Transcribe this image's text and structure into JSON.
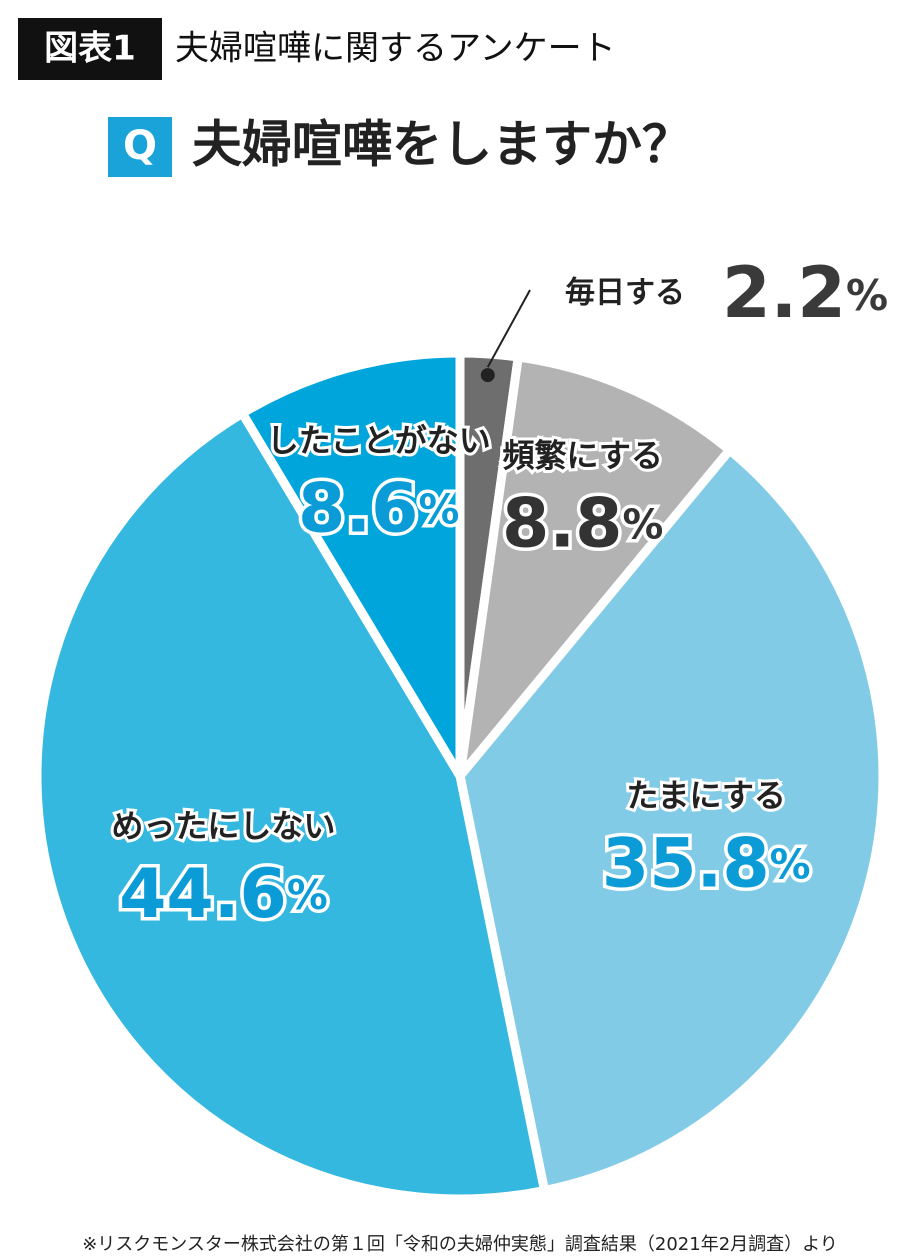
{
  "header": {
    "badge": "図表1",
    "title": "夫婦喧嘩に関するアンケート"
  },
  "question": {
    "badge": "Q",
    "text": "夫婦喧嘩をしますか？"
  },
  "chart_data": {
    "type": "pie",
    "categories": [
      "毎日する",
      "頻繁にする",
      "たまにする",
      "めったにしない",
      "したことがない"
    ],
    "values": [
      2.2,
      8.8,
      35.8,
      44.6,
      8.6
    ],
    "value_labels": [
      "2.2%",
      "8.8%",
      "35.8%",
      "44.6%",
      "8.6%"
    ],
    "colors": [
      "#6e6e6e",
      "#b3b3b3",
      "#82cbe6",
      "#35b8e0",
      "#00a5db"
    ]
  },
  "footnote": "※リスクモンスター株式会社の第１回「令和の夫婦仲実態」調査結果（2021年2月調査）より"
}
